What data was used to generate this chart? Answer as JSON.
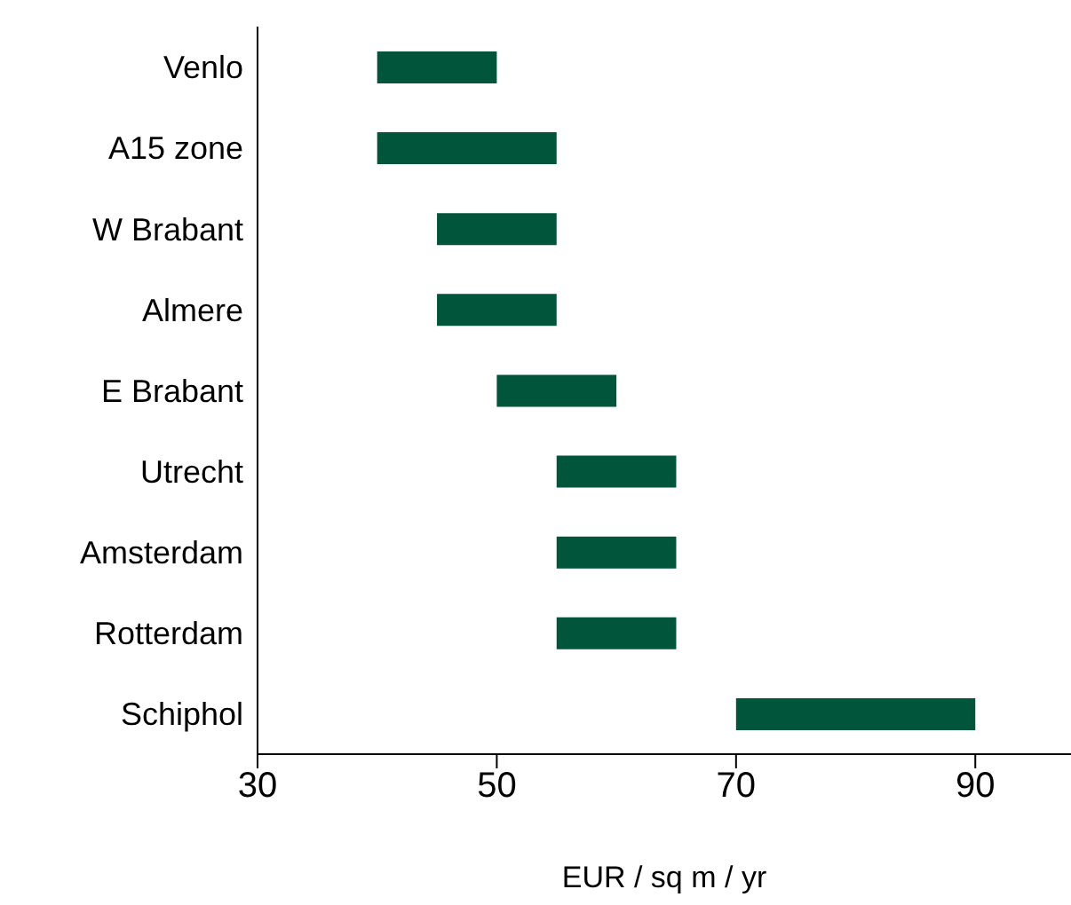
{
  "chart_data": {
    "type": "bar",
    "orientation": "horizontal",
    "categories": [
      "Venlo",
      "A15 zone",
      "W Brabant",
      "Almere",
      "E Brabant",
      "Utrecht",
      "Amsterdam",
      "Rotterdam",
      "Schiphol"
    ],
    "base": [
      40,
      40,
      45,
      45,
      50,
      55,
      55,
      55,
      70
    ],
    "values": [
      10,
      15,
      10,
      10,
      10,
      10,
      10,
      10,
      20
    ],
    "color": "#00553a",
    "xlim": [
      30,
      98
    ],
    "xticks": [
      30,
      50,
      70,
      90
    ],
    "xlabel": "EUR / sq m / yr",
    "grid": false,
    "legend": false
  }
}
